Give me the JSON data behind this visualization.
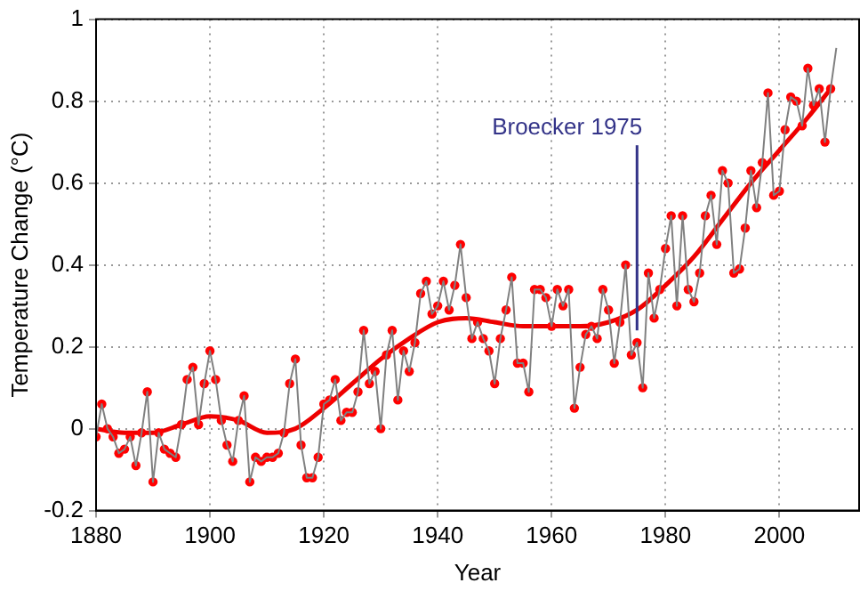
{
  "chart_data": {
    "type": "line",
    "xlabel": "Year",
    "ylabel": "Temperature Change (°C)",
    "xlim": [
      1880,
      2014
    ],
    "xticks": [
      1880,
      1900,
      1920,
      1940,
      1960,
      1980,
      2000
    ],
    "ylim": [
      -0.2,
      1
    ],
    "yticks": [
      -0.2,
      0,
      0.2,
      0.4,
      0.6,
      0.8,
      1
    ],
    "grid": true,
    "legend": false,
    "annotations": [
      {
        "text": "Broecker 1975",
        "x": 1975,
        "y": 0.24
      }
    ],
    "series": [
      {
        "type": "line",
        "color": "#808080",
        "marker": "none",
        "x": [
          1880,
          1881,
          1882,
          1883,
          1884,
          1885,
          1886,
          1887,
          1888,
          1889,
          1890,
          1891,
          1892,
          1893,
          1894,
          1895,
          1896,
          1897,
          1898,
          1899,
          1900,
          1901,
          1902,
          1903,
          1904,
          1905,
          1906,
          1907,
          1908,
          1909,
          1910,
          1911,
          1912,
          1913,
          1914,
          1915,
          1916,
          1917,
          1918,
          1919,
          1920,
          1921,
          1922,
          1923,
          1924,
          1925,
          1926,
          1927,
          1928,
          1929,
          1930,
          1931,
          1932,
          1933,
          1934,
          1935,
          1936,
          1937,
          1938,
          1939,
          1940,
          1941,
          1942,
          1943,
          1944,
          1945,
          1946,
          1947,
          1948,
          1949,
          1950,
          1951,
          1952,
          1953,
          1954,
          1955,
          1956,
          1957,
          1958,
          1959,
          1960,
          1961,
          1962,
          1963,
          1964,
          1965,
          1966,
          1967,
          1968,
          1969,
          1970,
          1971,
          1972,
          1973,
          1974,
          1975,
          1976,
          1977,
          1978,
          1979,
          1980,
          1981,
          1982,
          1983,
          1984,
          1985,
          1986,
          1987,
          1988,
          1989,
          1990,
          1991,
          1992,
          1993,
          1994,
          1995,
          1996,
          1997,
          1998,
          1999,
          2000,
          2001,
          2002,
          2003,
          2004,
          2005,
          2006,
          2007,
          2008,
          2009,
          2010
        ],
        "values": [
          -0.02,
          0.06,
          0,
          -0.02,
          -0.06,
          -0.05,
          -0.02,
          -0.09,
          -0.01,
          0.09,
          -0.13,
          -0.01,
          -0.05,
          -0.06,
          -0.07,
          0.01,
          0.12,
          0.15,
          0.01,
          0.11,
          0.19,
          0.12,
          0.02,
          -0.04,
          -0.08,
          0.02,
          0.08,
          -0.13,
          -0.07,
          -0.08,
          -0.07,
          -0.07,
          -0.06,
          -0.01,
          0.11,
          0.17,
          -0.04,
          -0.12,
          -0.12,
          -0.07,
          0.06,
          0.07,
          0.12,
          0.02,
          0.04,
          0.04,
          0.09,
          0.24,
          0.11,
          0.14,
          0.0,
          0.18,
          0.24,
          0.07,
          0.19,
          0.14,
          0.21,
          0.33,
          0.36,
          0.28,
          0.3,
          0.36,
          0.29,
          0.35,
          0.45,
          0.32,
          0.22,
          0.26,
          0.22,
          0.19,
          0.11,
          0.22,
          0.29,
          0.37,
          0.16,
          0.16,
          0.09,
          0.34,
          0.34,
          0.32,
          0.25,
          0.34,
          0.3,
          0.34,
          0.05,
          0.15,
          0.23,
          0.25,
          0.22,
          0.34,
          0.29,
          0.16,
          0.26,
          0.4,
          0.18,
          0.21,
          0.1,
          0.38,
          0.27,
          0.34,
          0.44,
          0.52,
          0.3,
          0.52,
          0.34,
          0.31,
          0.38,
          0.52,
          0.57,
          0.45,
          0.63,
          0.6,
          0.38,
          0.39,
          0.49,
          0.63,
          0.54,
          0.65,
          0.82,
          0.57,
          0.58,
          0.73,
          0.81,
          0.8,
          0.74,
          0.88,
          0.79,
          0.83,
          0.7,
          0.83,
          0.93
        ]
      },
      {
        "type": "scatter",
        "color": "#ff0000",
        "marker": "circle",
        "x": [
          1880,
          1881,
          1882,
          1883,
          1884,
          1885,
          1886,
          1887,
          1888,
          1889,
          1890,
          1891,
          1892,
          1893,
          1894,
          1895,
          1896,
          1897,
          1898,
          1899,
          1900,
          1901,
          1902,
          1903,
          1904,
          1905,
          1906,
          1907,
          1908,
          1909,
          1910,
          1911,
          1912,
          1913,
          1914,
          1915,
          1916,
          1917,
          1918,
          1919,
          1920,
          1921,
          1922,
          1923,
          1924,
          1925,
          1926,
          1927,
          1928,
          1929,
          1930,
          1931,
          1932,
          1933,
          1934,
          1935,
          1936,
          1937,
          1938,
          1939,
          1940,
          1941,
          1942,
          1943,
          1944,
          1945,
          1946,
          1947,
          1948,
          1949,
          1950,
          1951,
          1952,
          1953,
          1954,
          1955,
          1956,
          1957,
          1958,
          1959,
          1960,
          1961,
          1962,
          1963,
          1964,
          1965,
          1966,
          1967,
          1968,
          1969,
          1970,
          1971,
          1972,
          1973,
          1974,
          1975,
          1976,
          1977,
          1978,
          1979,
          1980,
          1981,
          1982,
          1983,
          1984,
          1985,
          1986,
          1987,
          1988,
          1989,
          1990,
          1991,
          1992,
          1993,
          1994,
          1995,
          1996,
          1997,
          1998,
          1999,
          2000,
          2001,
          2002,
          2003,
          2004,
          2005,
          2006,
          2007,
          2008,
          2009
        ],
        "values": [
          -0.02,
          0.06,
          0,
          -0.02,
          -0.06,
          -0.05,
          -0.02,
          -0.09,
          -0.01,
          0.09,
          -0.13,
          -0.01,
          -0.05,
          -0.06,
          -0.07,
          0.01,
          0.12,
          0.15,
          0.01,
          0.11,
          0.19,
          0.12,
          0.02,
          -0.04,
          -0.08,
          0.02,
          0.08,
          -0.13,
          -0.07,
          -0.08,
          -0.07,
          -0.07,
          -0.06,
          -0.01,
          0.11,
          0.17,
          -0.04,
          -0.12,
          -0.12,
          -0.07,
          0.06,
          0.07,
          0.12,
          0.02,
          0.04,
          0.04,
          0.09,
          0.24,
          0.11,
          0.14,
          0.0,
          0.18,
          0.24,
          0.07,
          0.19,
          0.14,
          0.21,
          0.33,
          0.36,
          0.28,
          0.3,
          0.36,
          0.29,
          0.35,
          0.45,
          0.32,
          0.22,
          0.26,
          0.22,
          0.19,
          0.11,
          0.22,
          0.29,
          0.37,
          0.16,
          0.16,
          0.09,
          0.34,
          0.34,
          0.32,
          0.25,
          0.34,
          0.3,
          0.34,
          0.05,
          0.15,
          0.23,
          0.25,
          0.22,
          0.34,
          0.29,
          0.16,
          0.26,
          0.4,
          0.18,
          0.21,
          0.1,
          0.38,
          0.27,
          0.34,
          0.44,
          0.52,
          0.3,
          0.52,
          0.34,
          0.31,
          0.38,
          0.52,
          0.57,
          0.45,
          0.63,
          0.6,
          0.38,
          0.39,
          0.49,
          0.63,
          0.54,
          0.65,
          0.82,
          0.57,
          0.58,
          0.73,
          0.81,
          0.8,
          0.74,
          0.88,
          0.79,
          0.83,
          0.7,
          0.83
        ]
      },
      {
        "type": "line",
        "color": "#ee0000",
        "marker": "none",
        "x": [
          1880,
          1885,
          1890,
          1895,
          1900,
          1905,
          1910,
          1915,
          1920,
          1925,
          1930,
          1935,
          1940,
          1945,
          1950,
          1955,
          1960,
          1965,
          1970,
          1975,
          1980,
          1985,
          1990,
          1995,
          2000,
          2005,
          2009
        ],
        "values": [
          0.0,
          -0.01,
          -0.01,
          0.01,
          0.03,
          0.02,
          -0.01,
          0.0,
          0.05,
          0.11,
          0.17,
          0.22,
          0.26,
          0.27,
          0.26,
          0.25,
          0.25,
          0.25,
          0.26,
          0.29,
          0.35,
          0.42,
          0.51,
          0.6,
          0.68,
          0.76,
          0.83
        ]
      }
    ]
  }
}
